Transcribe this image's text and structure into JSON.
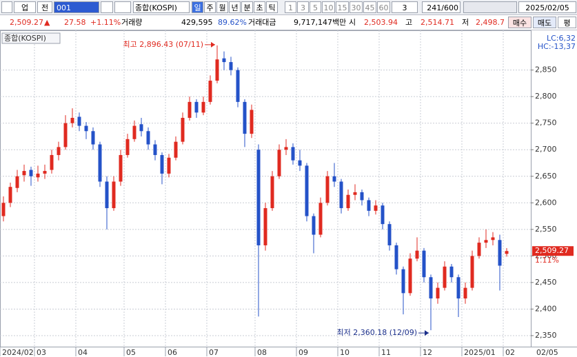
{
  "toolbar": {
    "market": "업",
    "scope": "전",
    "code": "001",
    "name": "종합(KOSPI)",
    "periods": [
      "일",
      "주",
      "월",
      "년",
      "분",
      "초",
      "틱"
    ],
    "intervals": [
      "1",
      "3",
      "5",
      "10",
      "15",
      "30",
      "45",
      "60"
    ],
    "multiplier": "3",
    "count": "241/600",
    "date": "2025/02/05"
  },
  "quote_bar": {
    "price": "2,509.27",
    "arrow": "▲",
    "change": "27.58",
    "change_rate": "+1.11%",
    "volume_label": "거래량",
    "volume": "429,595",
    "volume_rate": "89.62%",
    "amount_label": "거래대금",
    "amount": "9,717,147백만",
    "open_label": "시",
    "open": "2,503.94",
    "high_label": "고",
    "high": "2,514.71",
    "low_label": "저",
    "low": "2,498.7",
    "buy": "매수",
    "sell": "매도",
    "avg": "평"
  },
  "chart_data": {
    "type": "candlestick",
    "legend": "종합(KOSPI)",
    "corner_labels": [
      "LC:6,32",
      "HC:-13,37"
    ],
    "current_label": "2,509.27",
    "current_change": "1.11%",
    "date_label": "02/05",
    "max_annotation": "최고 2,896.43 (07/11)",
    "min_annotation": "최저 2,360.18 (12/09)",
    "up_color": "#e02a20",
    "down_color": "#2452c8",
    "grid": true,
    "ylim": [
      2337,
      2917
    ],
    "yticks": [
      {
        "value": 2350,
        "label": "2,350"
      },
      {
        "value": 2400,
        "label": "2,400"
      },
      {
        "value": 2450,
        "label": "2,450"
      },
      {
        "value": 2500,
        "label": "2,500"
      },
      {
        "value": 2550,
        "label": "2,550"
      },
      {
        "value": 2600,
        "label": "2,600"
      },
      {
        "value": 2650,
        "label": "2,650"
      },
      {
        "value": 2700,
        "label": "2,700"
      },
      {
        "value": 2750,
        "label": "2,750"
      },
      {
        "value": 2800,
        "label": "2,800"
      },
      {
        "value": 2850,
        "label": "2,850"
      }
    ],
    "categories": [
      "2024/02",
      null,
      null,
      null,
      null,
      "03",
      null,
      null,
      null,
      null,
      null,
      "04",
      null,
      null,
      null,
      null,
      null,
      null,
      "05",
      null,
      null,
      null,
      null,
      null,
      "06",
      null,
      null,
      null,
      null,
      null,
      "07",
      null,
      null,
      null,
      null,
      null,
      null,
      "08",
      null,
      null,
      null,
      null,
      null,
      "09",
      null,
      null,
      null,
      null,
      null,
      "10",
      null,
      null,
      null,
      null,
      null,
      "11",
      null,
      null,
      null,
      null,
      null,
      "12",
      null,
      null,
      null,
      null,
      null,
      "2025/01",
      null,
      null,
      null,
      null,
      null,
      "02"
    ],
    "open": [
      2575,
      2600,
      2628,
      2652,
      2662,
      2648,
      2655,
      2662,
      2690,
      2705,
      2750,
      2762,
      2745,
      2735,
      2710,
      2640,
      2590,
      2640,
      2690,
      2720,
      2748,
      2735,
      2710,
      2690,
      2655,
      2685,
      2715,
      2760,
      2790,
      2770,
      2790,
      2830,
      2872,
      2865,
      2850,
      2790,
      2730,
      2700,
      2520,
      2590,
      2650,
      2700,
      2705,
      2680,
      2670,
      2575,
      2540,
      2600,
      2650,
      2640,
      2590,
      2615,
      2620,
      2605,
      2585,
      2595,
      2560,
      2520,
      2475,
      2430,
      2495,
      2510,
      2460,
      2420,
      2440,
      2480,
      2460,
      2420,
      2440,
      2500,
      2525,
      2530,
      2530,
      2503.94
    ],
    "high": [
      2612,
      2638,
      2662,
      2672,
      2668,
      2670,
      2672,
      2700,
      2715,
      2765,
      2778,
      2770,
      2752,
      2742,
      2715,
      2650,
      2650,
      2700,
      2730,
      2755,
      2760,
      2742,
      2718,
      2695,
      2692,
      2725,
      2770,
      2800,
      2795,
      2800,
      2840,
      2896.43,
      2885,
      2875,
      2855,
      2795,
      2785,
      2710,
      2600,
      2660,
      2710,
      2720,
      2712,
      2700,
      2675,
      2580,
      2610,
      2660,
      2675,
      2645,
      2625,
      2635,
      2625,
      2610,
      2605,
      2600,
      2565,
      2525,
      2480,
      2505,
      2535,
      2515,
      2465,
      2450,
      2490,
      2485,
      2465,
      2450,
      2510,
      2535,
      2550,
      2545,
      2540,
      2514.71
    ],
    "low": [
      2565,
      2592,
      2620,
      2640,
      2632,
      2640,
      2645,
      2655,
      2680,
      2700,
      2742,
      2735,
      2720,
      2700,
      2630,
      2550,
      2585,
      2632,
      2685,
      2715,
      2725,
      2700,
      2680,
      2635,
      2648,
      2680,
      2710,
      2755,
      2760,
      2765,
      2785,
      2825,
      2850,
      2840,
      2780,
      2705,
      2722,
      2386,
      2510,
      2585,
      2645,
      2690,
      2672,
      2660,
      2565,
      2505,
      2535,
      2595,
      2630,
      2580,
      2585,
      2605,
      2595,
      2575,
      2578,
      2550,
      2510,
      2465,
      2390,
      2425,
      2490,
      2450,
      2360.18,
      2410,
      2435,
      2450,
      2385,
      2410,
      2435,
      2495,
      2515,
      2520,
      2435,
      2498.7
    ],
    "close": [
      2600,
      2630,
      2650,
      2660,
      2650,
      2655,
      2660,
      2690,
      2705,
      2750,
      2760,
      2745,
      2735,
      2710,
      2640,
      2590,
      2640,
      2690,
      2720,
      2745,
      2735,
      2710,
      2690,
      2655,
      2685,
      2715,
      2760,
      2790,
      2770,
      2790,
      2830,
      2870,
      2865,
      2850,
      2790,
      2730,
      2775,
      2520,
      2590,
      2650,
      2700,
      2705,
      2680,
      2670,
      2575,
      2540,
      2600,
      2650,
      2640,
      2590,
      2615,
      2620,
      2605,
      2585,
      2595,
      2560,
      2520,
      2475,
      2430,
      2495,
      2510,
      2460,
      2420,
      2440,
      2480,
      2460,
      2420,
      2440,
      2500,
      2525,
      2530,
      2535,
      2481.69,
      2509.27
    ]
  }
}
